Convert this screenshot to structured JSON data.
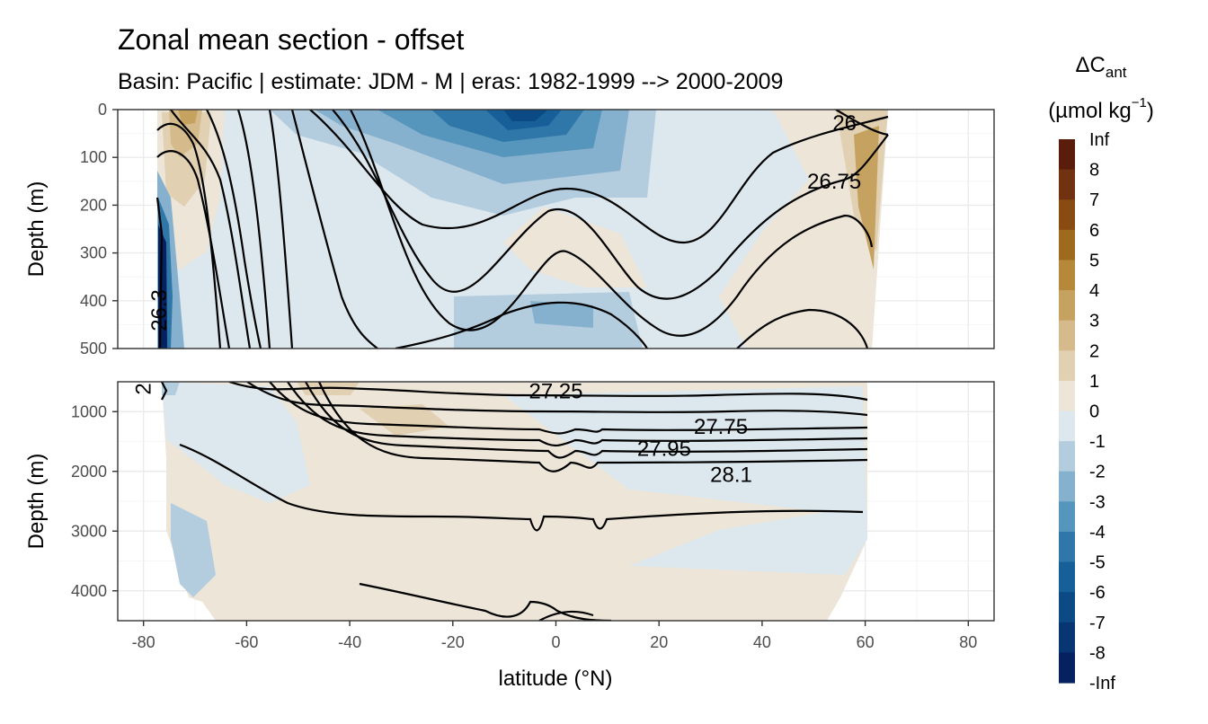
{
  "chart_data": {
    "type": "heatmap",
    "title": "Zonal mean section - offset",
    "subtitle": "Basin: Pacific | estimate: JDM - M | eras: 1982-1999 --> 2000-2009",
    "xlabel": "latitude (°N)",
    "xlim": [
      -85,
      85
    ],
    "x_ticks": [
      -80,
      -60,
      -40,
      -20,
      0,
      20,
      40,
      60,
      80
    ],
    "panels": [
      {
        "name": "upper",
        "ylabel": "Depth (m)",
        "ylim": [
          0,
          500
        ],
        "y_ticks": [
          0,
          100,
          200,
          300,
          400,
          500
        ],
        "contour_labels": [
          {
            "text": "26",
            "lat": 56,
            "depth": 28
          },
          {
            "text": "26.75",
            "lat": 54,
            "depth": 150
          },
          {
            "text": "26.3",
            "lat": -77,
            "depth": 420
          }
        ]
      },
      {
        "name": "lower",
        "ylabel": "Depth (m)",
        "ylim": [
          500,
          4500
        ],
        "y_ticks": [
          1000,
          2000,
          3000,
          4000
        ],
        "contour_labels": [
          {
            "text": "27.25",
            "lat": 0,
            "depth": 660
          },
          {
            "text": "27.75",
            "lat": 32,
            "depth": 1250
          },
          {
            "text": "27.95",
            "lat": 21,
            "depth": 1620
          },
          {
            "text": "28.1",
            "lat": 34,
            "depth": 2060
          },
          {
            "text": "2",
            "lat": -80,
            "depth": 620
          }
        ]
      }
    ],
    "legend": {
      "title": "ΔC",
      "title_sub": "ant",
      "units_pre": "(µmol kg",
      "units_sup": "−1",
      "units_post": ")",
      "levels": [
        "Inf",
        "8",
        "7",
        "6",
        "5",
        "4",
        "3",
        "2",
        "1",
        "0",
        "-1",
        "-2",
        "-3",
        "-4",
        "-5",
        "-6",
        "-7",
        "-8",
        "-Inf"
      ],
      "colors": [
        "#5b1d0b",
        "#703210",
        "#884c12",
        "#9e6a1d",
        "#b5883a",
        "#c6a261",
        "#d5bb8b",
        "#e1d0b1",
        "#ece5d8",
        "#dde8ee",
        "#b3cddf",
        "#86b1ce",
        "#5695bc",
        "#2f77a8",
        "#175f98",
        "#0b4a85",
        "#083673",
        "#06215f"
      ]
    }
  }
}
